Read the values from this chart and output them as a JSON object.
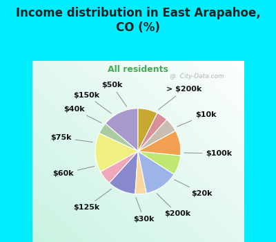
{
  "title": "Income distribution in East Arapahoe,\nCO (%)",
  "subtitle": "All residents",
  "bg_cyan": "#00eeff",
  "bg_chart_colors": [
    "#ffffff",
    "#c8ecd8"
  ],
  "watermark": "@  City-Data.com",
  "labels": [
    "> $200k",
    "$10k",
    "$100k",
    "$20k",
    "$200k",
    "$30k",
    "$125k",
    "$60k",
    "$75k",
    "$40k",
    "$150k",
    "$50k"
  ],
  "values": [
    13,
    4,
    14,
    5,
    10,
    4,
    12,
    7,
    9,
    5,
    4,
    7
  ],
  "colors": [
    "#a899cc",
    "#aacca0",
    "#f0f080",
    "#f0a8b8",
    "#8888cc",
    "#f8d8a0",
    "#9cb4e8",
    "#c0e870",
    "#f0a050",
    "#c8beb0",
    "#d89098",
    "#c8a830"
  ],
  "startangle": 90,
  "label_fontsize": 8,
  "title_fontsize": 12,
  "subtitle_fontsize": 9,
  "title_color": "#222222",
  "subtitle_color": "#44aa55"
}
